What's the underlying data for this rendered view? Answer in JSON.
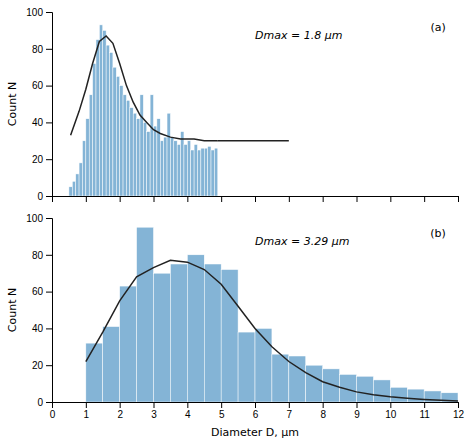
{
  "chart_data": [
    {
      "type": "histogram",
      "title": "(a)",
      "annotation": "Dmax = 1.8 μm",
      "ylabel": "Count N",
      "series": [
        {
          "type": "bar",
          "bins": [
            0.5,
            0.6,
            0.7,
            0.8,
            0.9,
            1.0,
            1.1,
            1.2,
            1.3,
            1.4,
            1.5,
            1.6,
            1.7,
            1.8,
            1.9,
            2.0,
            2.1,
            2.2,
            2.3,
            2.4,
            2.5,
            2.6,
            2.7,
            2.8,
            2.9,
            3.0,
            3.1,
            3.2,
            3.3,
            3.4,
            3.5,
            3.6,
            3.7,
            3.8,
            3.9,
            4.0,
            4.1,
            4.2,
            4.3,
            4.4,
            4.5,
            4.6,
            4.7,
            4.8,
            4.9
          ],
          "values": [
            5,
            8,
            12,
            18,
            30,
            42,
            55,
            72,
            85,
            93,
            90,
            82,
            78,
            70,
            65,
            60,
            55,
            52,
            48,
            45,
            42,
            55,
            40,
            35,
            55,
            38,
            42,
            30,
            32,
            45,
            32,
            30,
            28,
            35,
            28,
            30,
            25,
            28,
            25,
            26,
            26,
            27,
            25,
            26
          ]
        },
        {
          "type": "line",
          "x": [
            0.55,
            0.8,
            1.0,
            1.2,
            1.4,
            1.6,
            1.8,
            2.0,
            2.2,
            2.4,
            2.6,
            2.8,
            3.0,
            3.2,
            3.5,
            3.8,
            4.0,
            4.2,
            4.5,
            4.9
          ],
          "values": [
            33,
            46,
            58,
            72,
            84,
            87,
            83,
            72,
            60,
            51,
            44,
            40,
            36,
            34,
            32,
            31,
            31,
            31,
            30,
            30
          ]
        },
        {
          "type": "line",
          "x": [
            4.9,
            7.0
          ],
          "values": [
            30,
            30
          ]
        }
      ],
      "xlim": [
        0,
        12
      ],
      "ylim": [
        0,
        100
      ],
      "xticks": [
        0,
        1,
        2,
        3,
        4,
        5,
        6,
        7,
        8,
        9,
        10,
        11,
        12
      ],
      "yticks": [
        0,
        20,
        40,
        60,
        80,
        100
      ],
      "tick_labels": "y"
    },
    {
      "type": "histogram",
      "title": "(b)",
      "annotation": "Dmax = 3.29 μm",
      "xlabel": "Diameter D, μm",
      "ylabel": "Count N",
      "series": [
        {
          "type": "bar",
          "bins": [
            1.0,
            1.5,
            2.0,
            2.5,
            3.0,
            3.5,
            4.0,
            4.5,
            5.0,
            5.5,
            6.0,
            6.5,
            7.0,
            7.5,
            8.0,
            8.5,
            9.0,
            9.5,
            10.0,
            10.5,
            11.0,
            11.5,
            12.0
          ],
          "values": [
            32,
            41,
            63,
            95,
            70,
            75,
            80,
            75,
            72,
            38,
            40,
            26,
            25,
            20,
            18,
            15,
            14,
            12,
            8,
            7,
            6,
            5
          ]
        },
        {
          "type": "line",
          "x": [
            1.0,
            1.5,
            2.0,
            2.5,
            3.0,
            3.5,
            4.0,
            4.5,
            5.0,
            5.5,
            6.0,
            6.5,
            7.0,
            7.5,
            8.0,
            8.5,
            9.0,
            9.5,
            10.0,
            10.5,
            11.0,
            11.5,
            12.0
          ],
          "values": [
            22,
            38,
            55,
            68,
            73,
            77,
            76,
            72,
            64,
            52,
            40,
            30,
            22,
            16,
            11,
            8,
            5.5,
            4,
            2.8,
            2,
            1.4,
            1,
            0.6
          ]
        }
      ],
      "xlim": [
        0,
        12
      ],
      "ylim": [
        0,
        100
      ],
      "xticks": [
        0,
        1,
        2,
        3,
        4,
        5,
        6,
        7,
        8,
        9,
        10,
        11,
        12
      ],
      "yticks": [
        0,
        20,
        40,
        60,
        80,
        100
      ]
    }
  ]
}
